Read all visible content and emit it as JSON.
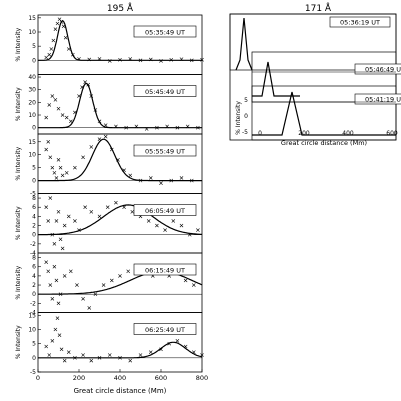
{
  "figure": {
    "left_title": "195 Å",
    "right_title": "171 Å",
    "ylabel": "% Intensity",
    "xlabel": "Great circle distance (Mm)"
  },
  "chart_data": [
    {
      "type": "scatter",
      "panel": "195-1",
      "label": "05:35:49 UT",
      "xlim": [
        0,
        800
      ],
      "ylim": [
        -5,
        16
      ],
      "yticks": [
        0,
        5,
        10,
        15
      ],
      "points": [
        [
          40,
          1
        ],
        [
          55,
          2
        ],
        [
          65,
          4
        ],
        [
          75,
          7
        ],
        [
          85,
          11
        ],
        [
          95,
          13
        ],
        [
          105,
          14.5
        ],
        [
          115,
          13.5
        ],
        [
          125,
          12
        ],
        [
          135,
          8
        ],
        [
          150,
          4
        ],
        [
          170,
          2
        ],
        [
          200,
          0.5
        ],
        [
          250,
          0.3
        ],
        [
          300,
          0.5
        ],
        [
          350,
          -0.2
        ],
        [
          400,
          0.2
        ],
        [
          450,
          0.5
        ],
        [
          500,
          0
        ],
        [
          550,
          0.3
        ],
        [
          600,
          -0.2
        ],
        [
          650,
          0.2
        ],
        [
          700,
          0.4
        ],
        [
          750,
          0
        ],
        [
          800,
          0.2
        ]
      ],
      "fit": {
        "amp": 14,
        "center": 120,
        "sigma": 25
      }
    },
    {
      "type": "scatter",
      "panel": "195-2",
      "label": "05:45:49 UT",
      "xlim": [
        0,
        800
      ],
      "ylim": [
        -5,
        42
      ],
      "yticks": [
        0,
        10,
        20,
        30,
        40
      ],
      "points": [
        [
          40,
          8
        ],
        [
          55,
          18
        ],
        [
          70,
          25
        ],
        [
          85,
          22
        ],
        [
          100,
          15
        ],
        [
          120,
          10
        ],
        [
          140,
          8
        ],
        [
          160,
          5
        ],
        [
          180,
          12
        ],
        [
          200,
          25
        ],
        [
          215,
          32
        ],
        [
          230,
          36
        ],
        [
          245,
          34
        ],
        [
          260,
          25
        ],
        [
          280,
          14
        ],
        [
          300,
          5
        ],
        [
          330,
          2
        ],
        [
          380,
          1
        ],
        [
          430,
          0
        ],
        [
          480,
          1
        ],
        [
          530,
          -1
        ],
        [
          580,
          0
        ],
        [
          630,
          1
        ],
        [
          680,
          0
        ],
        [
          730,
          1
        ],
        [
          780,
          0
        ]
      ],
      "fit": {
        "amp": 35,
        "center": 235,
        "sigma": 32
      }
    },
    {
      "type": "scatter",
      "panel": "195-3",
      "label": "05:55:49 UT",
      "xlim": [
        0,
        800
      ],
      "ylim": [
        -5,
        18
      ],
      "yticks": [
        -5,
        0,
        5,
        10,
        15
      ],
      "points": [
        [
          40,
          12
        ],
        [
          50,
          15
        ],
        [
          60,
          9
        ],
        [
          70,
          5
        ],
        [
          80,
          3
        ],
        [
          90,
          1
        ],
        [
          100,
          8
        ],
        [
          110,
          5
        ],
        [
          120,
          2
        ],
        [
          140,
          3
        ],
        [
          180,
          5
        ],
        [
          220,
          9
        ],
        [
          260,
          13
        ],
        [
          300,
          16
        ],
        [
          330,
          17
        ],
        [
          360,
          12
        ],
        [
          390,
          8
        ],
        [
          420,
          4
        ],
        [
          450,
          2
        ],
        [
          500,
          0
        ],
        [
          550,
          1
        ],
        [
          600,
          -1
        ],
        [
          650,
          0
        ],
        [
          700,
          1
        ],
        [
          750,
          0
        ]
      ],
      "fit": {
        "amp": 16,
        "center": 320,
        "sigma": 55
      }
    },
    {
      "type": "scatter",
      "panel": "195-4",
      "label": "06:05:49 UT",
      "xlim": [
        0,
        800
      ],
      "ylim": [
        -4,
        9
      ],
      "yticks": [
        -4,
        -2,
        0,
        2,
        4,
        6,
        8
      ],
      "points": [
        [
          40,
          6
        ],
        [
          50,
          3
        ],
        [
          60,
          8
        ],
        [
          70,
          0
        ],
        [
          80,
          -2
        ],
        [
          90,
          3
        ],
        [
          100,
          5
        ],
        [
          110,
          -1
        ],
        [
          120,
          -3
        ],
        [
          130,
          2
        ],
        [
          150,
          4
        ],
        [
          180,
          3
        ],
        [
          200,
          1
        ],
        [
          230,
          6
        ],
        [
          260,
          5
        ],
        [
          300,
          4
        ],
        [
          340,
          6
        ],
        [
          380,
          7
        ],
        [
          420,
          6
        ],
        [
          460,
          5
        ],
        [
          500,
          4
        ],
        [
          540,
          3
        ],
        [
          580,
          2
        ],
        [
          620,
          1
        ],
        [
          660,
          3
        ],
        [
          700,
          2
        ],
        [
          740,
          0
        ],
        [
          780,
          1
        ]
      ],
      "fit": {
        "amp": 6.5,
        "center": 440,
        "sigma": 120
      }
    },
    {
      "type": "scatter",
      "panel": "195-5",
      "label": "06:15:49 UT",
      "xlim": [
        0,
        800
      ],
      "ylim": [
        -4,
        9
      ],
      "yticks": [
        -4,
        -2,
        0,
        2,
        4,
        6,
        8
      ],
      "points": [
        [
          40,
          7
        ],
        [
          50,
          5
        ],
        [
          60,
          2
        ],
        [
          70,
          -1
        ],
        [
          80,
          6
        ],
        [
          90,
          3
        ],
        [
          100,
          -2
        ],
        [
          110,
          0
        ],
        [
          130,
          4
        ],
        [
          160,
          5
        ],
        [
          190,
          2
        ],
        [
          220,
          -1
        ],
        [
          250,
          -3
        ],
        [
          280,
          0
        ],
        [
          320,
          2
        ],
        [
          360,
          3
        ],
        [
          400,
          4
        ],
        [
          440,
          5
        ],
        [
          480,
          6
        ],
        [
          520,
          5
        ],
        [
          560,
          4
        ],
        [
          600,
          5
        ],
        [
          640,
          4
        ],
        [
          680,
          6
        ],
        [
          720,
          3
        ],
        [
          760,
          2
        ]
      ],
      "fit": {
        "amp": 5,
        "center": 600,
        "sigma": 150
      }
    },
    {
      "type": "scatter",
      "panel": "195-6",
      "label": "06:25:49 UT",
      "xlim": [
        0,
        800
      ],
      "ylim": [
        -5,
        16
      ],
      "yticks": [
        -5,
        0,
        5,
        10,
        15
      ],
      "xticks": [
        0,
        200,
        400,
        600,
        800
      ],
      "points": [
        [
          40,
          4
        ],
        [
          55,
          1
        ],
        [
          70,
          6
        ],
        [
          85,
          10
        ],
        [
          95,
          14
        ],
        [
          105,
          8
        ],
        [
          115,
          3
        ],
        [
          130,
          -1
        ],
        [
          150,
          2
        ],
        [
          180,
          0
        ],
        [
          220,
          1
        ],
        [
          260,
          -1
        ],
        [
          300,
          0
        ],
        [
          350,
          1
        ],
        [
          400,
          0
        ],
        [
          450,
          -1
        ],
        [
          500,
          1
        ],
        [
          550,
          2
        ],
        [
          600,
          3
        ],
        [
          640,
          5
        ],
        [
          680,
          6
        ],
        [
          720,
          4
        ],
        [
          760,
          2
        ],
        [
          800,
          1
        ]
      ],
      "fit": {
        "amp": 5.5,
        "center": 660,
        "sigma": 60
      }
    },
    {
      "type": "scatter",
      "panel": "171",
      "labels": [
        "05:36:19 UT",
        "05:46:49 UT",
        "05:41:19 UT"
      ],
      "xticks": [
        0,
        200,
        400,
        600
      ],
      "yticks": [
        -5,
        0,
        5
      ],
      "note": "Overlapping inset panels"
    }
  ]
}
